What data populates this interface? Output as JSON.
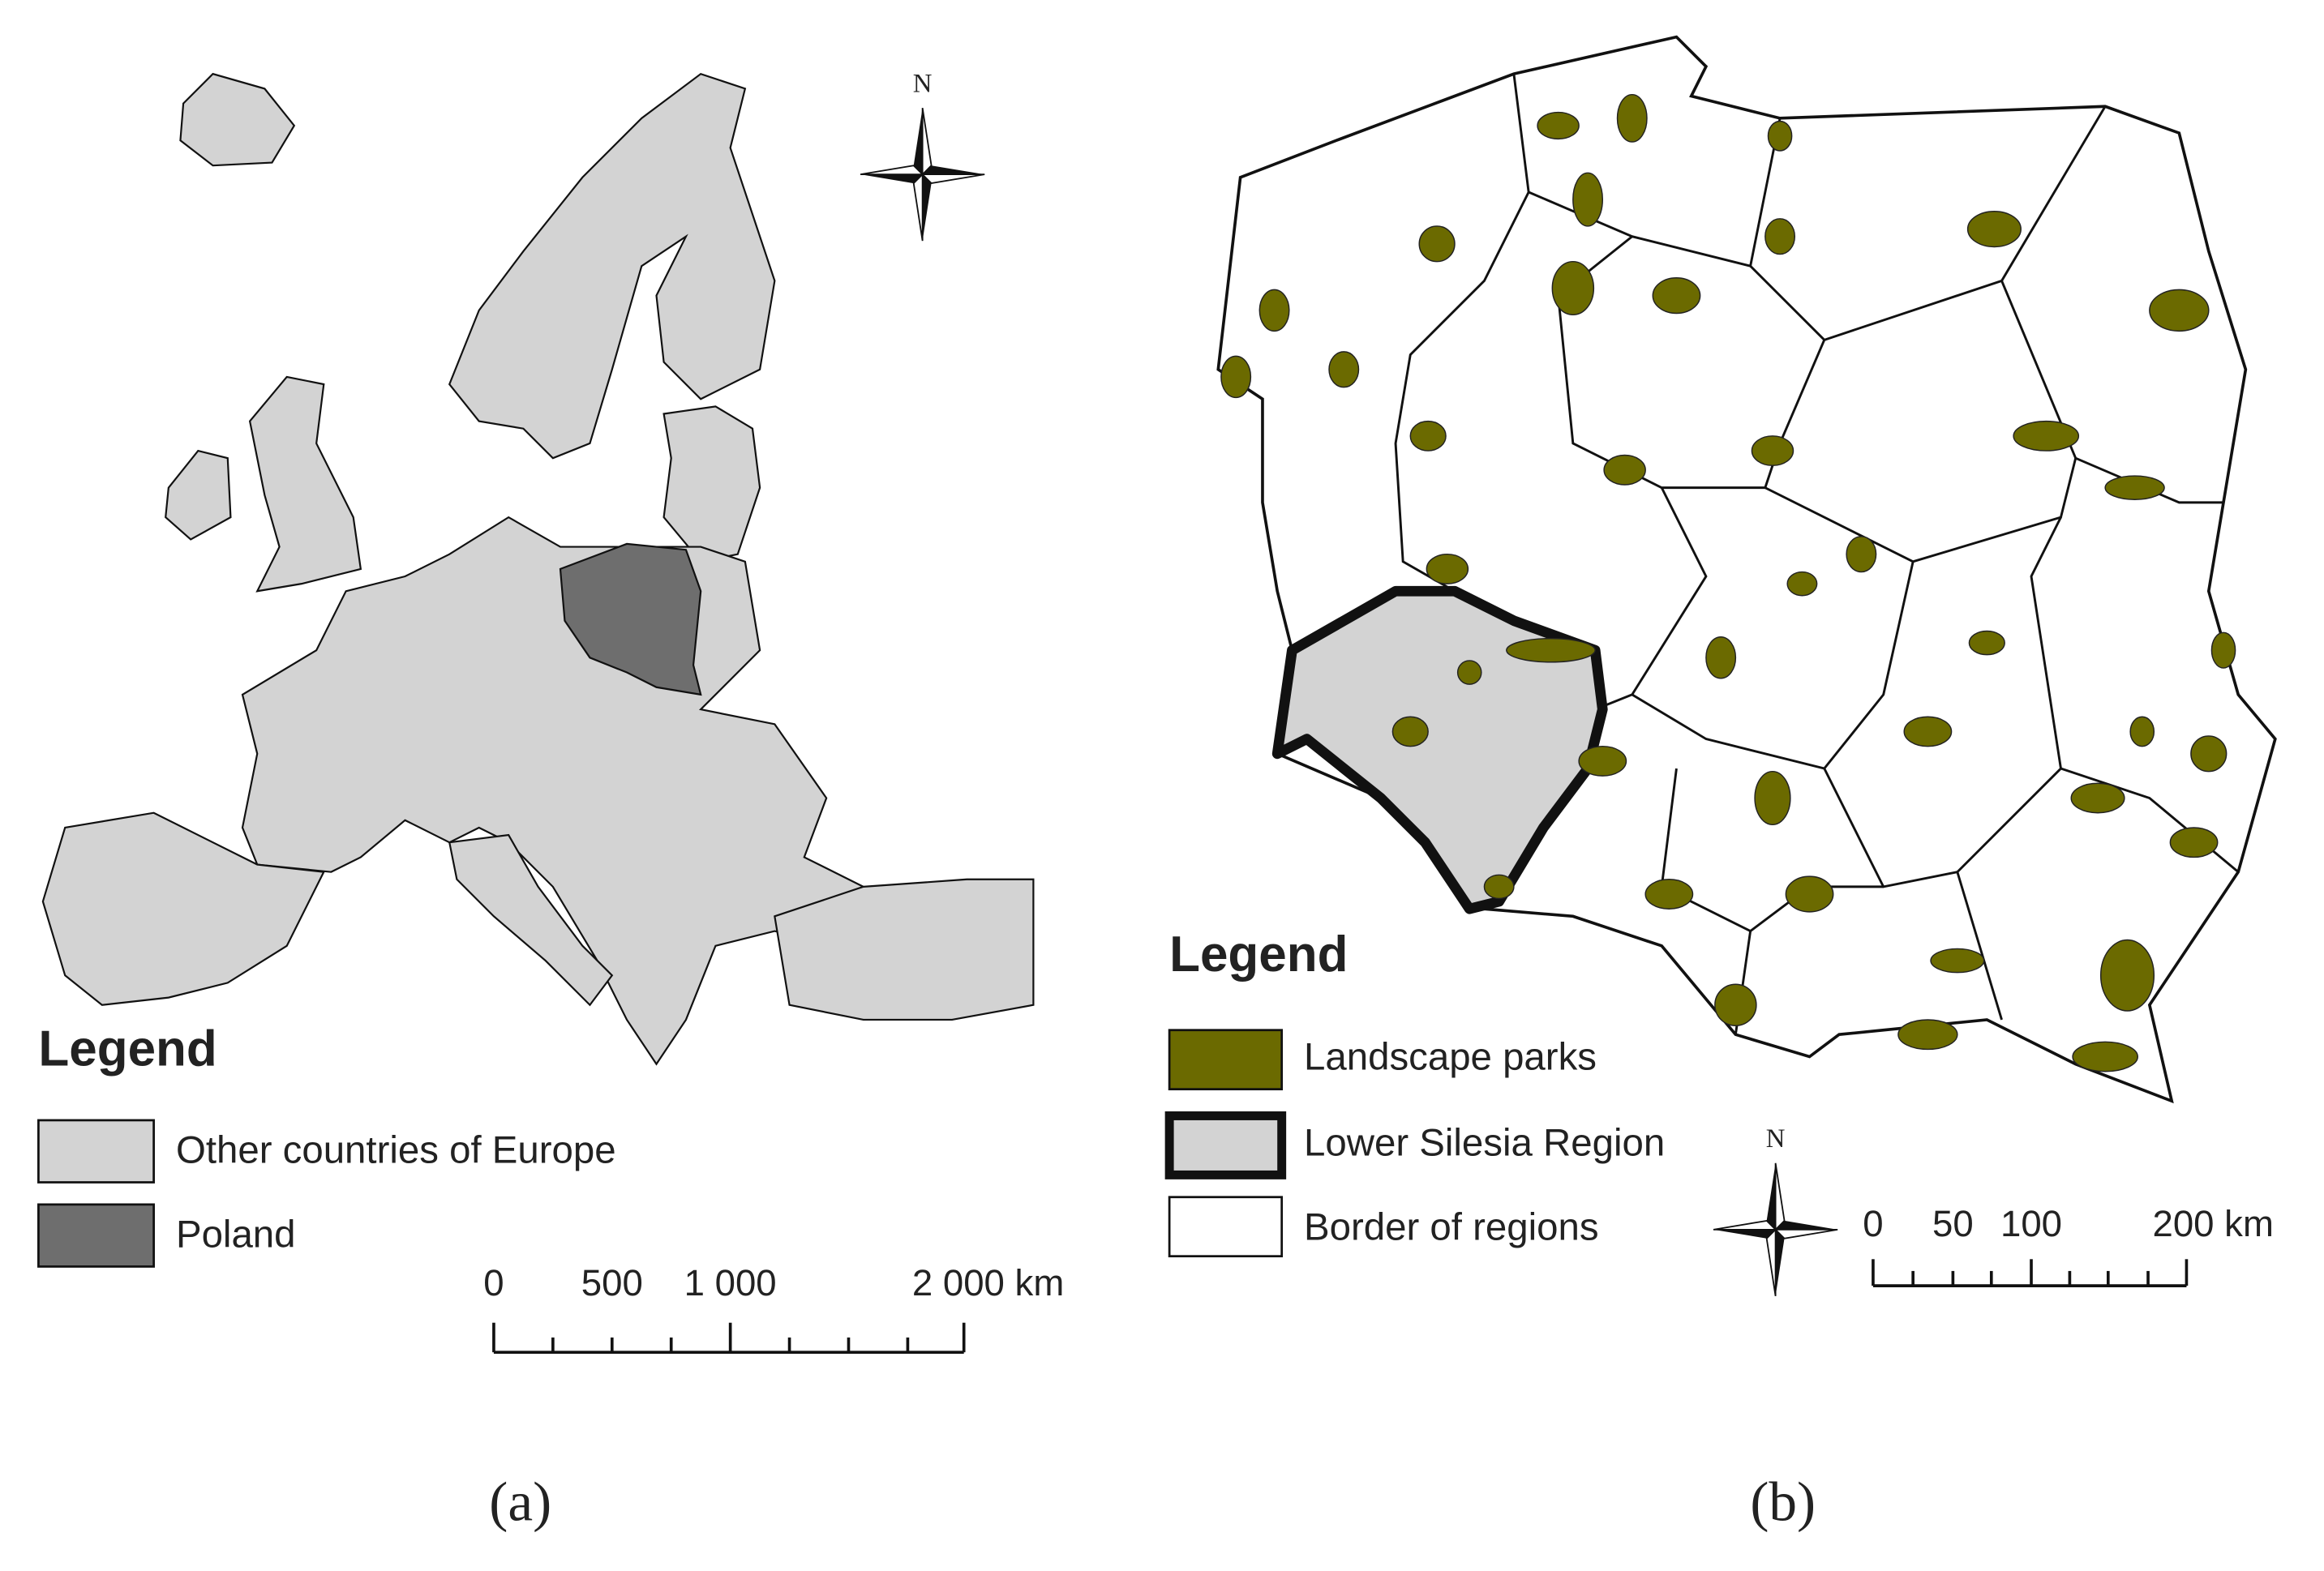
{
  "panel_a": {
    "north": "N",
    "legend": {
      "title": "Legend",
      "items": [
        "Other countries of Europe",
        "Poland"
      ]
    },
    "scale_bar": {
      "labels": [
        "0",
        "500",
        "1 000",
        "2 000 km"
      ]
    },
    "caption": "(a)"
  },
  "panel_b": {
    "north": "N",
    "legend": {
      "title": "Legend",
      "items": [
        "Landscape parks",
        "Lower Silesia Region",
        "Border of regions"
      ]
    },
    "scale_bar": {
      "labels": [
        "0",
        "50",
        "100",
        "200 km"
      ]
    },
    "caption": "(b)"
  }
}
